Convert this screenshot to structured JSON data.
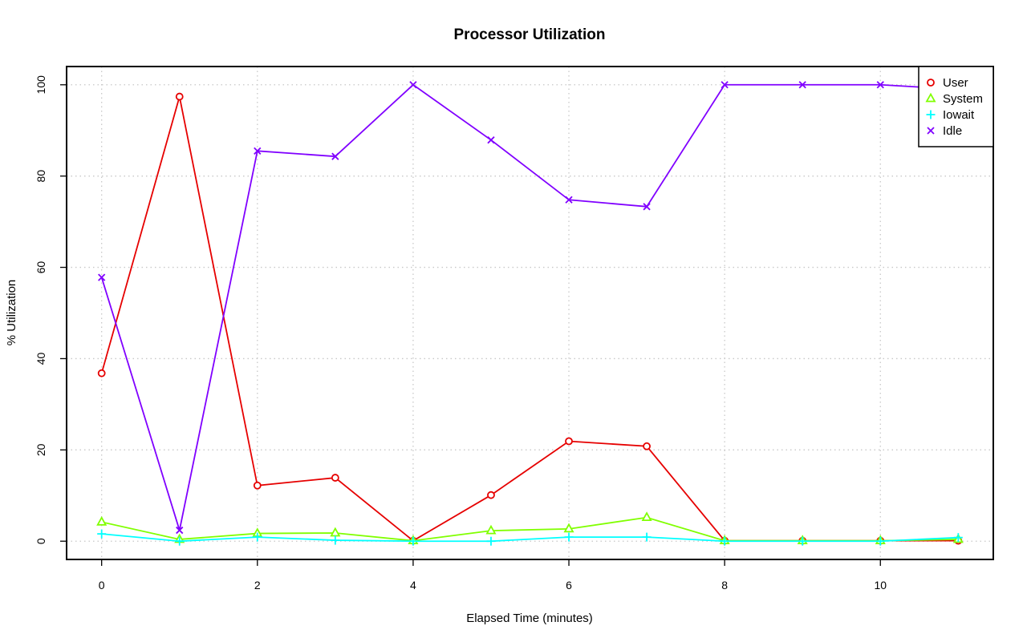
{
  "chart_data": {
    "type": "line",
    "title": "Processor Utilization",
    "xlabel": "Elapsed Time (minutes)",
    "ylabel": "% Utilization",
    "xlim": [
      -0.45,
      11.45
    ],
    "ylim": [
      -4,
      104
    ],
    "xticks": [
      0,
      2,
      4,
      6,
      8,
      10
    ],
    "yticks": [
      0,
      20,
      40,
      60,
      80,
      100
    ],
    "grid": true,
    "legend_position": "top-right",
    "x": [
      0,
      1,
      2,
      3,
      4,
      5,
      6,
      7,
      8,
      9,
      10,
      11
    ],
    "series": [
      {
        "name": "User",
        "marker": "circle",
        "color": "#e60000",
        "values": [
          36.8,
          97.4,
          12.2,
          13.9,
          0.1,
          10.1,
          21.9,
          20.8,
          0.1,
          0.1,
          0.1,
          0.1
        ]
      },
      {
        "name": "System",
        "marker": "triangle",
        "color": "#80ff00",
        "values": [
          4.2,
          0.4,
          1.7,
          1.8,
          0.1,
          2.3,
          2.7,
          5.2,
          0.1,
          0.1,
          0.1,
          0.4
        ]
      },
      {
        "name": "Iowait",
        "marker": "plus",
        "color": "#00ffff",
        "values": [
          1.6,
          0.0,
          0.9,
          0.2,
          0.0,
          0.0,
          0.9,
          0.9,
          0.0,
          0.0,
          0.0,
          0.8
        ]
      },
      {
        "name": "Idle",
        "marker": "cross",
        "color": "#8000ff",
        "values": [
          57.8,
          2.4,
          85.5,
          84.3,
          100.0,
          87.9,
          74.8,
          73.3,
          100.0,
          100.0,
          100.0,
          99.0
        ]
      }
    ]
  }
}
